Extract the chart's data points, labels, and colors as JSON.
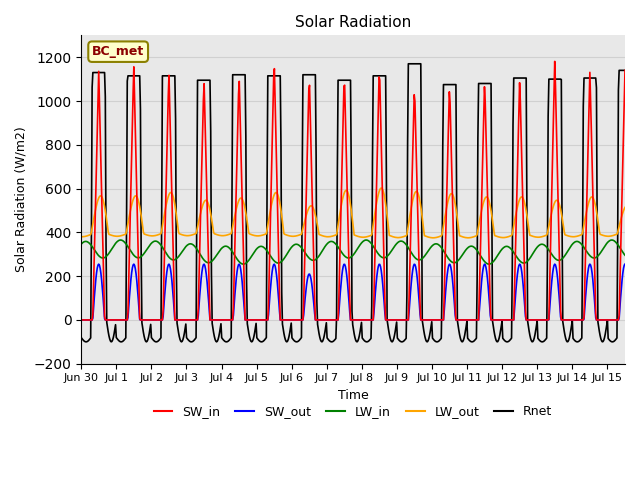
{
  "title": "Solar Radiation",
  "ylabel": "Solar Radiation (W/m2)",
  "xlabel": "Time",
  "ylim": [
    -200,
    1300
  ],
  "yticks": [
    -200,
    0,
    200,
    400,
    600,
    800,
    1000,
    1200
  ],
  "colors": {
    "SW_in": "red",
    "SW_out": "blue",
    "LW_in": "green",
    "LW_out": "orange",
    "Rnet": "black"
  },
  "station_label": "BC_met",
  "station_label_color": "#8B0000",
  "station_box_color": "#FFFFCC",
  "station_box_edge": "#8B8000",
  "grid_color": "#d0d0d0",
  "background_color": "#e8e8e8",
  "xtick_positions": [
    0,
    1,
    2,
    3,
    4,
    5,
    6,
    7,
    8,
    9,
    10,
    11,
    12,
    13,
    14,
    15
  ],
  "xtick_labels": [
    "Jun 30",
    "Jul 1",
    "Jul 2",
    "Jul 3",
    "Jul 4",
    "Jul 5",
    "Jul 6",
    "Jul 7",
    "Jul 8",
    "Jul 9",
    "Jul 10",
    "Jul 11",
    "Jul 12",
    "Jul 13",
    "Jul 14",
    "Jul 15"
  ]
}
